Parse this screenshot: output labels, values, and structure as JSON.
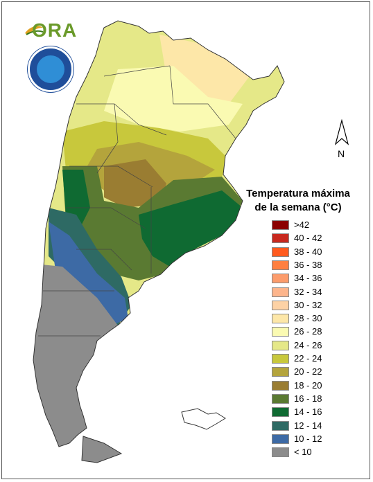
{
  "logos": {
    "ora_text": "ORA",
    "ora_icon": "leaf-logo-icon",
    "smn_icon": "smn-seal-icon",
    "smn_ring_text": "SERVICIO METEOROLOGICO NACIONAL ARGENTINA"
  },
  "north_arrow": {
    "label": "N",
    "icon": "north-arrow-icon"
  },
  "legend": {
    "title_line1": "Temperatura máxima",
    "title_line2": "de la semana (°C)",
    "items": [
      {
        "label": ">42",
        "color": "#8b0000"
      },
      {
        "label": "40 - 42",
        "color": "#c8281e"
      },
      {
        "label": "38 - 40",
        "color": "#ff5a1e"
      },
      {
        "label": "36 - 38",
        "color": "#ff7f3f"
      },
      {
        "label": "34 - 36",
        "color": "#fc9c6c"
      },
      {
        "label": "32 - 34",
        "color": "#fdb58c"
      },
      {
        "label": "30 - 32",
        "color": "#fdd2a5"
      },
      {
        "label": "28 - 30",
        "color": "#fde7a8"
      },
      {
        "label": "26 - 28",
        "color": "#fafab2"
      },
      {
        "label": "24 - 26",
        "color": "#e5e888"
      },
      {
        "label": "22 - 24",
        "color": "#c8c83c"
      },
      {
        "label": "20 - 22",
        "color": "#b4a43c"
      },
      {
        "label": "18 - 20",
        "color": "#9a7d32"
      },
      {
        "label": "16 - 18",
        "color": "#5a7a32"
      },
      {
        "label": "14 - 16",
        "color": "#0f6a32"
      },
      {
        "label": "12 - 14",
        "color": "#2e6a64"
      },
      {
        "label": "10 - 12",
        "color": "#3d6aa5"
      },
      {
        "label": "< 10",
        "color": "#8c8c8c"
      }
    ]
  }
}
